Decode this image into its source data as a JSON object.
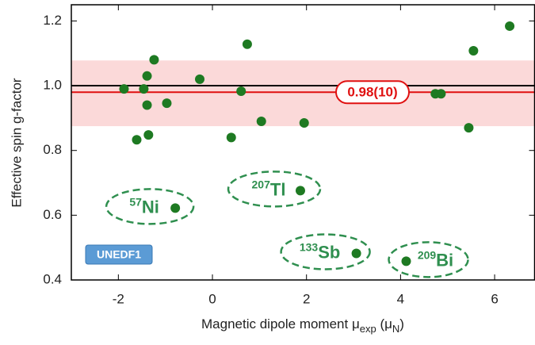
{
  "chart_data": {
    "type": "scatter",
    "y_label": "Effective spin g-factor",
    "x_label": {
      "main": "Magnetic dipole moment μ",
      "sub1": "exp",
      "mid": " (μ",
      "sub2": "N",
      "end": ")"
    },
    "xlim": [
      -3,
      6.85
    ],
    "ylim": [
      0.4,
      1.25
    ],
    "xticks": [
      -2,
      0,
      2,
      4,
      6
    ],
    "yticks": [
      0.4,
      0.6,
      0.8,
      {
        "value": 1,
        "label": "1.0"
      },
      1.2
    ],
    "series": [
      {
        "color": "#1e7a22",
        "x": [
          -1.88,
          -1.61,
          -1.46,
          -1.39,
          -1.39,
          -1.36,
          -1.24,
          -0.97,
          -0.27,
          0.4,
          0.61,
          0.74,
          1.04,
          1.95,
          4.74,
          4.86,
          5.45,
          5.55,
          6.32
        ],
        "values": [
          0.99,
          0.833,
          0.99,
          1.03,
          0.94,
          0.848,
          1.08,
          0.946,
          1.02,
          0.84,
          0.983,
          1.128,
          0.89,
          0.885,
          0.975,
          0.975,
          0.87,
          1.108,
          1.184
        ]
      }
    ],
    "highlighted": [
      {
        "mass": "57",
        "symbol": "Ni",
        "x": -0.79,
        "y": 0.622
      },
      {
        "mass": "207",
        "symbol": "Tl",
        "x": 1.87,
        "y": 0.676
      },
      {
        "mass": "133",
        "symbol": "Sb",
        "x": 3.06,
        "y": 0.482
      },
      {
        "mass": "209",
        "symbol": "Bi",
        "x": 4.12,
        "y": 0.458
      }
    ],
    "reference_line": 1,
    "fit": {
      "value": 0.98,
      "label": "0.98(10)",
      "band": [
        0.875,
        1.078
      ],
      "color": "#e01010",
      "band_color": "#fbd9d9"
    },
    "badge": "UNEDF1"
  }
}
